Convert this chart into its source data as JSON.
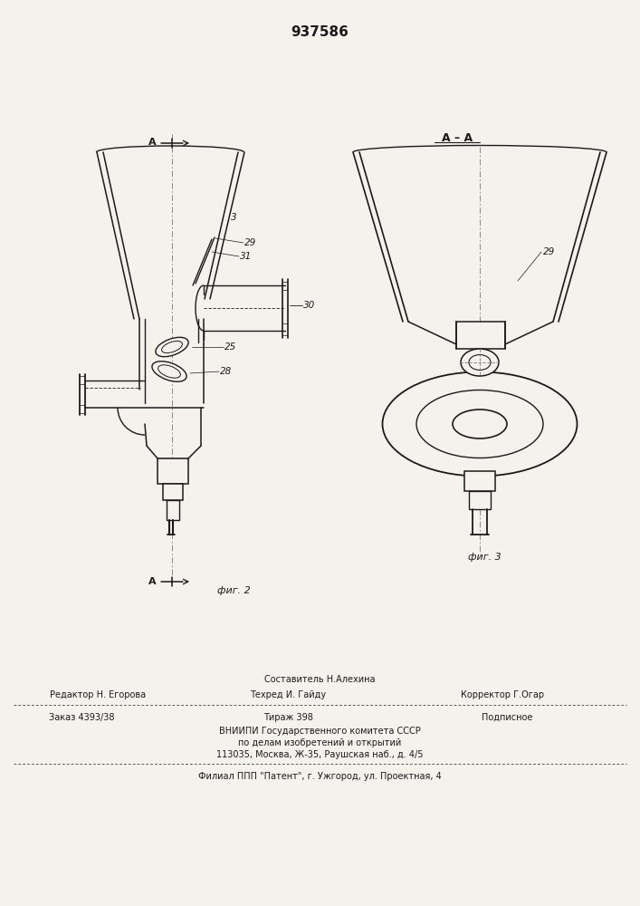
{
  "patent_number": "937586",
  "fig2_label": "фиг. 2",
  "fig3_label": "фиг. 3",
  "footer_line1_center_top": "Составитель Н.Алехина",
  "footer_line1_left": "Редактор Н. Егорова",
  "footer_line1_center": "Техред И. Гайду",
  "footer_line1_right": "Корректор Г.Огар",
  "footer_line2_left": "Заказ 4393/38",
  "footer_line2_center": "Тираж 398",
  "footer_line2_right": "Подписное",
  "footer_line3": "ВНИИПИ Государственного комитета СССР",
  "footer_line4": "по делам изобретений и открытий",
  "footer_line5": "113035, Москва, Ж-35, Раушская наб., д. 4/5",
  "footer_line6": "Филиал ППП \"Патент\", г. Ужгород, ул. Проектная, 4",
  "bg_color": "#f5f2ee",
  "line_color": "#1a1a1a"
}
